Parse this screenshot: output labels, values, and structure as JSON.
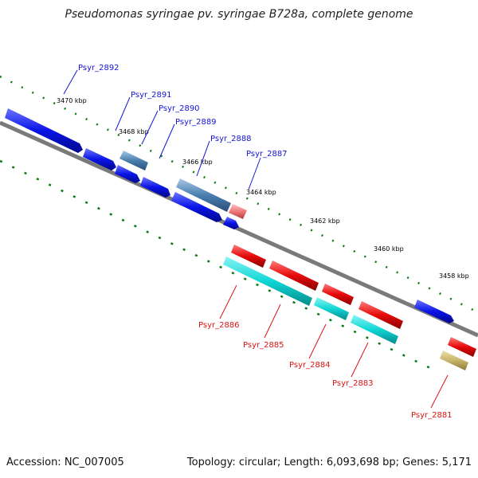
{
  "header": {
    "title": "Pseudomonas syringae pv. syringae B728a, complete genome"
  },
  "footer": {
    "accession": "Accession: NC_007005",
    "stats": "Topology: circular; Length: 6,093,698 bp; Genes: 5,171"
  },
  "colors": {
    "forward_gene": "#0a14e6",
    "reverse_gene": "#e60a0a",
    "cyan_gene": "#10d6d6",
    "steel_gene": "#4a7fb0",
    "pink_gene": "#f07878",
    "olive_gene": "#c8b46a",
    "backbone": "#7a7a7a",
    "tick": "#0a7a14",
    "label_forward": "#1414d8",
    "label_reverse": "#d81414"
  },
  "scale_ticks": [
    {
      "label": "3470 kbp"
    },
    {
      "label": "3468 kbp"
    },
    {
      "label": "3466 kbp"
    },
    {
      "label": "3464 kbp"
    },
    {
      "label": "3462 kbp"
    },
    {
      "label": "3460 kbp"
    },
    {
      "label": "3458 kbp"
    }
  ],
  "genes_top": [
    {
      "label": "Psyr_2892"
    },
    {
      "label": "Psyr_2891"
    },
    {
      "label": "Psyr_2890"
    },
    {
      "label": "Psyr_2889"
    },
    {
      "label": "Psyr_2888"
    },
    {
      "label": "Psyr_2887"
    }
  ],
  "genes_bottom": [
    {
      "label": "Psyr_2886"
    },
    {
      "label": "Psyr_2885"
    },
    {
      "label": "Psyr_2884"
    },
    {
      "label": "Psyr_2883"
    },
    {
      "label": "Psyr_2881"
    }
  ]
}
